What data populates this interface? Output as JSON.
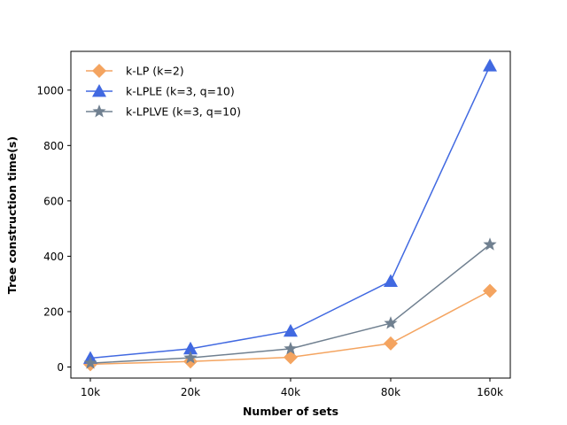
{
  "chart_data": {
    "type": "line",
    "title": "",
    "xlabel": "Number of sets",
    "ylabel": "Tree construction time(s)",
    "categories": [
      "10k",
      "20k",
      "40k",
      "80k",
      "160k"
    ],
    "ylim": [
      -40,
      1140
    ],
    "yticks": [
      0,
      200,
      400,
      600,
      800,
      1000
    ],
    "grid": false,
    "legend_position": "upper-left",
    "series": [
      {
        "name": "k-LP (k=2)",
        "color": "#F4A460",
        "marker": "diamond",
        "values": [
          10,
          20,
          35,
          85,
          275
        ]
      },
      {
        "name": "k-LPLE (k=3, q=10)",
        "color": "#4169E1",
        "marker": "triangle",
        "values": [
          32,
          66,
          130,
          310,
          1088
        ]
      },
      {
        "name": "k-LPLVE (k=3, q=10)",
        "color": "#708090",
        "marker": "star",
        "values": [
          14,
          33,
          66,
          158,
          442
        ]
      }
    ]
  }
}
